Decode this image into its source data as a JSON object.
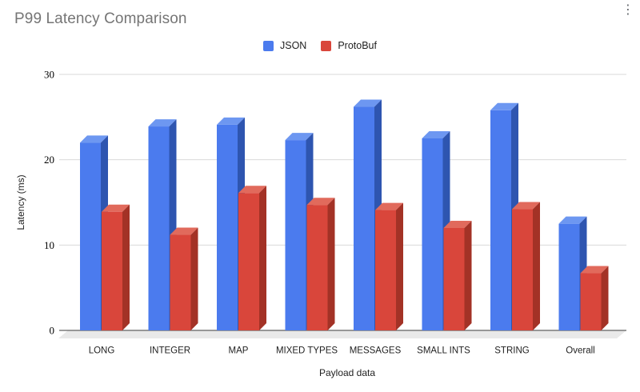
{
  "header": {
    "title": "P99 Latency Comparison"
  },
  "icons": {
    "kebab_menu": "⋮"
  },
  "chart_data": {
    "type": "bar",
    "style": "3d-column-grouped",
    "title": "P99 Latency Comparison",
    "categories": [
      "LONG",
      "INTEGER",
      "MAP",
      "MIXED TYPES",
      "MESSAGES",
      "SMALL INTS",
      "STRING",
      "Overall"
    ],
    "series": [
      {
        "name": "JSON",
        "color": "#4b7bee",
        "color_top": "#6d97f1",
        "color_side": "#2e55b0",
        "values": [
          22,
          23.9,
          24.1,
          22.3,
          26.2,
          22.5,
          25.8,
          12.5
        ]
      },
      {
        "name": "ProtoBuf",
        "color": "#d9463b",
        "color_top": "#e16a5c",
        "color_side": "#a33226",
        "values": [
          13.9,
          11.2,
          16.1,
          14.7,
          14.1,
          12,
          14.2,
          6.7
        ]
      }
    ],
    "xlabel": "Payload data",
    "ylabel": "Latency (ms)",
    "yticks": [
      0,
      10,
      20,
      30
    ],
    "ylim": [
      0,
      30
    ],
    "legend_position": "top-center",
    "grid": true,
    "theme": {
      "title_color": "#757575",
      "grid_color": "#d9d9d9",
      "axis_color": "#616161",
      "floor_color": "#e9e9e9",
      "tick_label_color": "#000000",
      "category_label_color": "#1f1f1f",
      "legend_label_color": "#1f1f1f",
      "menu_icon_color": "#5f6368"
    }
  }
}
